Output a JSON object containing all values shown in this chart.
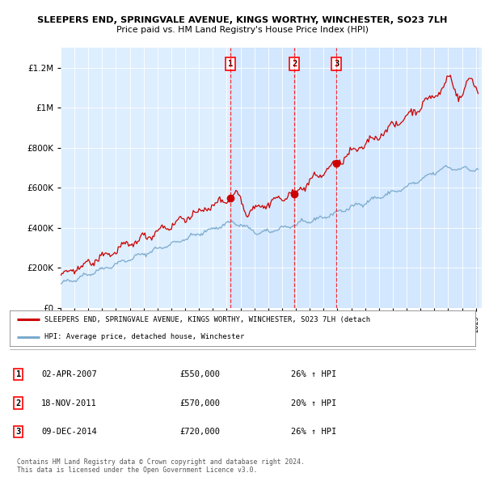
{
  "title1": "SLEEPERS END, SPRINGVALE AVENUE, KINGS WORTHY, WINCHESTER, SO23 7LH",
  "title2": "Price paid vs. HM Land Registry's House Price Index (HPI)",
  "bg_color": "#ddeeff",
  "red_color": "#cc0000",
  "blue_color": "#7aaacc",
  "sale_dates_str": [
    "2007-04-02",
    "2011-11-18",
    "2014-12-09"
  ],
  "sale_prices": [
    550000,
    570000,
    720000
  ],
  "sale_labels": [
    "1",
    "2",
    "3"
  ],
  "legend_line1": "SLEEPERS END, SPRINGVALE AVENUE, KINGS WORTHY, WINCHESTER, SO23 7LH (detach",
  "legend_line2": "HPI: Average price, detached house, Winchester",
  "table_entries": [
    {
      "num": "1",
      "date": "02-APR-2007",
      "price": "£550,000",
      "pct": "26% ↑ HPI"
    },
    {
      "num": "2",
      "date": "18-NOV-2011",
      "price": "£570,000",
      "pct": "20% ↑ HPI"
    },
    {
      "num": "3",
      "date": "09-DEC-2014",
      "price": "£720,000",
      "pct": "26% ↑ HPI"
    }
  ],
  "footnote1": "Contains HM Land Registry data © Crown copyright and database right 2024.",
  "footnote2": "This data is licensed under the Open Government Licence v3.0."
}
